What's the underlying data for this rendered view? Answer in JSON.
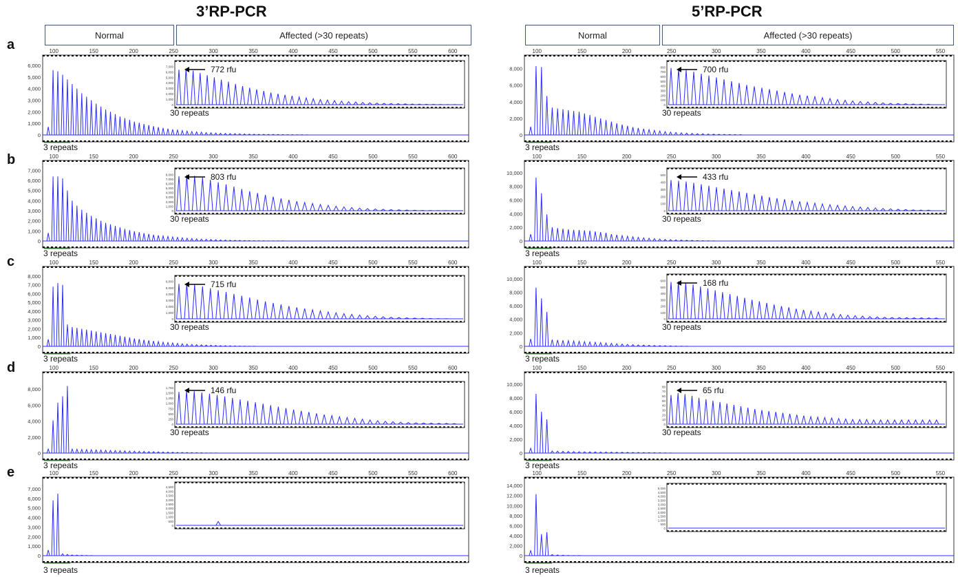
{
  "columns": [
    {
      "title": "3’RP-PCR",
      "normal_label": "Normal",
      "affected_label": "Affected (>30 repeats)"
    },
    {
      "title": "5’RP-PCR",
      "normal_label": "Normal",
      "affected_label": "Affected (>30 repeats)"
    }
  ],
  "row_labels": [
    "a",
    "b",
    "c",
    "d",
    "e"
  ],
  "colors": {
    "trace": "#2b2bff",
    "axis": "#333333",
    "box": "#3f5b78",
    "marker": "#2e8b2e"
  },
  "chart_data": [
    {
      "type": "line",
      "panel": "3'RP-PCR a",
      "xlim": [
        86,
        620
      ],
      "yticks": [
        0,
        1000,
        2000,
        3000,
        4000,
        5000,
        6000
      ],
      "ylim": [
        0,
        6300
      ],
      "x_ticks": [
        100,
        150,
        200,
        250,
        300,
        350,
        400,
        450,
        500,
        550,
        600
      ],
      "peak_start": 93,
      "peak_step": 6,
      "peaks": [
        700,
        5600,
        5500,
        5200,
        4800,
        4400,
        4000,
        3600,
        3300,
        3000,
        2700,
        2450,
        2200,
        2000,
        1800,
        1600,
        1450,
        1300,
        1150,
        1050,
        950,
        850,
        760,
        680,
        600,
        540,
        480,
        430,
        380,
        340,
        300,
        270,
        240,
        210,
        190,
        170,
        150,
        130,
        120,
        110,
        100,
        90,
        80,
        70,
        60,
        55,
        50,
        45,
        40,
        35,
        30,
        28,
        25,
        22,
        20
      ],
      "bottom_label": "3 repeats",
      "inset": {
        "peak_label": "772 rfu",
        "repeats_label": "30 repeats",
        "yticks": [
          0,
          1000,
          2000,
          3000,
          4000,
          5000,
          6000,
          7000
        ],
        "ylim": [
          0,
          7300
        ],
        "peaks": [
          6400,
          6600,
          6200,
          5800,
          5400,
          5000,
          4600,
          4200,
          3800,
          3400,
          3100,
          2800,
          2500,
          2200,
          2000,
          1800,
          1600,
          1400,
          1250,
          1100,
          950,
          850,
          750,
          650,
          560,
          480,
          410,
          350,
          300,
          250,
          210,
          180,
          150,
          120,
          100,
          80,
          60,
          50,
          40,
          30
        ]
      }
    },
    {
      "type": "line",
      "panel": "5'RP-PCR a",
      "xlim": [
        86,
        565
      ],
      "yticks": [
        0,
        2000,
        4000,
        6000,
        8000
      ],
      "ylim": [
        0,
        8800
      ],
      "x_ticks": [
        100,
        150,
        200,
        250,
        300,
        350,
        400,
        450,
        500,
        550
      ],
      "peak_start": 93,
      "peak_step": 6,
      "peaks": [
        1000,
        8300,
        8200,
        4700,
        3300,
        3200,
        3100,
        3000,
        2900,
        2800,
        2600,
        2400,
        2200,
        2000,
        1800,
        1600,
        1400,
        1250,
        1100,
        950,
        850,
        750,
        650,
        560,
        480,
        410,
        350,
        300,
        260,
        220,
        190,
        160,
        140,
        120,
        100,
        85,
        70,
        60,
        50,
        40
      ],
      "bottom_label": "3 repeats",
      "inset": {
        "peak_label": "700 rfu",
        "repeats_label": "30 repeats",
        "yticks": [
          0,
          100,
          200,
          300,
          400,
          500,
          600,
          700,
          800
        ],
        "ylim": [
          0,
          850
        ],
        "peaks": [
          780,
          760,
          740,
          700,
          660,
          620,
          580,
          540,
          500,
          460,
          420,
          390,
          360,
          330,
          300,
          270,
          240,
          210,
          190,
          170,
          150,
          130,
          110,
          95,
          80,
          70,
          60,
          50,
          40,
          30,
          25,
          20,
          15,
          12,
          10
        ]
      }
    },
    {
      "type": "line",
      "panel": "3'RP-PCR b",
      "xlim": [
        86,
        620
      ],
      "yticks": [
        0,
        1000,
        2000,
        3000,
        4000,
        5000,
        6000,
        7000
      ],
      "ylim": [
        0,
        7300
      ],
      "x_ticks": [
        100,
        150,
        200,
        250,
        300,
        350,
        400,
        450,
        500,
        550,
        600
      ],
      "peak_start": 93,
      "peak_step": 6,
      "peaks": [
        800,
        6400,
        6400,
        6200,
        5000,
        4000,
        3500,
        3100,
        2800,
        2500,
        2250,
        2000,
        1800,
        1650,
        1500,
        1350,
        1200,
        1080,
        970,
        870,
        780,
        700,
        630,
        560,
        500,
        450,
        400,
        360,
        320,
        280,
        250,
        220,
        190,
        170,
        150,
        130,
        110,
        95,
        80,
        70,
        60,
        50,
        40,
        35,
        30,
        25,
        22,
        20,
        18,
        15
      ],
      "bottom_label": "3 repeats",
      "inset": {
        "peak_label": "803 rfu",
        "repeats_label": "30 repeats",
        "yticks": [
          0,
          1000,
          2000,
          3000,
          4000,
          5000,
          6000,
          7000,
          8000
        ],
        "ylim": [
          0,
          8500
        ],
        "peaks": [
          7600,
          7900,
          7700,
          7300,
          6800,
          6300,
          5800,
          5300,
          4800,
          4300,
          3900,
          3500,
          3100,
          2700,
          2400,
          2100,
          1800,
          1600,
          1400,
          1200,
          1000,
          850,
          700,
          580,
          470,
          380,
          300,
          240,
          190,
          150,
          110,
          80,
          60,
          40,
          30
        ]
      }
    },
    {
      "type": "line",
      "panel": "5'RP-PCR b",
      "xlim": [
        86,
        565
      ],
      "yticks": [
        0,
        2000,
        4000,
        6000,
        8000,
        10000
      ],
      "ylim": [
        0,
        10800
      ],
      "x_ticks": [
        100,
        150,
        200,
        250,
        300,
        350,
        400,
        450,
        500,
        550
      ],
      "peak_start": 93,
      "peak_step": 6,
      "peaks": [
        1000,
        9300,
        7000,
        3900,
        2000,
        1900,
        1800,
        1700,
        1650,
        1600,
        1550,
        1500,
        1400,
        1300,
        1200,
        1000,
        900,
        800,
        700,
        620,
        540,
        460,
        400,
        340,
        290,
        240,
        200,
        170,
        140,
        110,
        90,
        70,
        55,
        40,
        30
      ],
      "bottom_label": "3 repeats",
      "inset": {
        "peak_label": "433 rfu",
        "repeats_label": "30 repeats",
        "yticks": [
          0,
          100,
          200,
          300,
          400,
          500
        ],
        "ylim": [
          0,
          540
        ],
        "peaks": [
          430,
          420,
          410,
          390,
          370,
          350,
          330,
          310,
          290,
          270,
          250,
          230,
          210,
          190,
          175,
          160,
          145,
          130,
          118,
          106,
          95,
          85,
          76,
          68,
          60,
          52,
          45,
          38,
          32,
          26,
          20,
          16,
          12,
          10,
          8
        ]
      }
    },
    {
      "type": "line",
      "panel": "3'RP-PCR c",
      "xlim": [
        86,
        620
      ],
      "yticks": [
        0,
        1000,
        2000,
        3000,
        4000,
        5000,
        6000,
        7000,
        8000
      ],
      "ylim": [
        0,
        8300
      ],
      "x_ticks": [
        100,
        150,
        200,
        250,
        300,
        350,
        400,
        450,
        500,
        550,
        600
      ],
      "peak_start": 93,
      "peak_step": 6,
      "peaks": [
        800,
        6800,
        7200,
        7000,
        2500,
        2200,
        2100,
        2000,
        1900,
        1800,
        1700,
        1600,
        1500,
        1400,
        1300,
        1200,
        1100,
        1000,
        900,
        820,
        740,
        670,
        600,
        540,
        480,
        430,
        380,
        340,
        300,
        260,
        230,
        200,
        170,
        150,
        130,
        110,
        90,
        75,
        60,
        50,
        40,
        30,
        25,
        20
      ],
      "bottom_label": "3 repeats",
      "inset": {
        "peak_label": "715 rfu",
        "repeats_label": "30 repeats",
        "yticks": [
          0,
          1000,
          2000,
          3000,
          4000,
          5000,
          6000
        ],
        "ylim": [
          0,
          6300
        ],
        "peaks": [
          5600,
          5700,
          5500,
          5200,
          4900,
          4600,
          4300,
          4000,
          3700,
          3400,
          3100,
          2800,
          2550,
          2300,
          2050,
          1850,
          1650,
          1450,
          1280,
          1120,
          970,
          840,
          720,
          610,
          510,
          420,
          340,
          270,
          210,
          160,
          120,
          90,
          60,
          40,
          25
        ]
      }
    },
    {
      "type": "line",
      "panel": "5'RP-PCR c",
      "xlim": [
        86,
        565
      ],
      "yticks": [
        0,
        2000,
        4000,
        6000,
        8000,
        10000
      ],
      "ylim": [
        0,
        10800
      ],
      "x_ticks": [
        100,
        150,
        200,
        250,
        300,
        350,
        400,
        450,
        500,
        550
      ],
      "peak_start": 93,
      "peak_step": 6,
      "peaks": [
        1100,
        8700,
        7100,
        5100,
        1000,
        950,
        900,
        850,
        800,
        750,
        700,
        650,
        600,
        550,
        500,
        450,
        400,
        350,
        300,
        260,
        220,
        190,
        160,
        130,
        110,
        90,
        70,
        55,
        40,
        30
      ],
      "bottom_label": "3 repeats",
      "inset": {
        "peak_label": "168 rfu",
        "repeats_label": "30 repeats",
        "yticks": [
          0,
          100,
          200,
          300,
          400,
          500,
          600
        ],
        "ylim": [
          0,
          640
        ],
        "peaks": [
          580,
          590,
          570,
          540,
          510,
          480,
          450,
          420,
          390,
          360,
          330,
          300,
          275,
          250,
          225,
          200,
          180,
          160,
          140,
          122,
          106,
          92,
          80,
          68,
          58,
          50,
          42,
          35,
          30,
          26,
          22,
          20,
          18,
          16,
          15,
          14,
          13
        ]
      }
    },
    {
      "type": "line",
      "panel": "3'RP-PCR d",
      "xlim": [
        86,
        620
      ],
      "yticks": [
        0,
        2000,
        4000,
        6000,
        8000
      ],
      "ylim": [
        0,
        9300
      ],
      "x_ticks": [
        100,
        150,
        200,
        250,
        300,
        350,
        400,
        450,
        500,
        550,
        600
      ],
      "peak_start": 93,
      "peak_step": 6,
      "peaks": [
        500,
        4100,
        6300,
        7100,
        8400,
        500,
        480,
        460,
        440,
        420,
        400,
        380,
        360,
        340,
        320,
        300,
        280,
        260,
        240,
        220,
        200,
        185,
        170,
        155,
        140,
        125,
        110,
        95,
        80,
        70,
        60,
        50,
        40,
        30,
        25,
        20
      ],
      "bottom_label": "3 repeats",
      "inset": {
        "peak_label": "146 rfu",
        "repeats_label": "30 repeats",
        "yticks": [
          0,
          250,
          500,
          750,
          1000,
          1250,
          1500,
          1750
        ],
        "ylim": [
          0,
          1850
        ],
        "peaks": [
          1550,
          1600,
          1580,
          1520,
          1460,
          1400,
          1330,
          1260,
          1190,
          1120,
          1050,
          980,
          910,
          840,
          770,
          700,
          640,
          580,
          520,
          460,
          410,
          360,
          320,
          280,
          240,
          200,
          170,
          140,
          115,
          95,
          80,
          65,
          55,
          45,
          40,
          35,
          30
        ]
      }
    },
    {
      "type": "line",
      "panel": "5'RP-PCR d",
      "xlim": [
        86,
        565
      ],
      "yticks": [
        0,
        2000,
        4000,
        6000,
        8000,
        10000
      ],
      "ylim": [
        0,
        10800
      ],
      "x_ticks": [
        100,
        150,
        200,
        250,
        300,
        350,
        400,
        450,
        500,
        550
      ],
      "peak_start": 93,
      "peak_step": 6,
      "peaks": [
        700,
        8600,
        6000,
        4900,
        300,
        280,
        260,
        240,
        220,
        200,
        190,
        180,
        170,
        160,
        150,
        140,
        130,
        120,
        110,
        100,
        90,
        80,
        70,
        60,
        50,
        40,
        30
      ],
      "bottom_label": "3 repeats",
      "inset": {
        "peak_label": "65 rfu",
        "repeats_label": "30 repeats",
        "yticks": [
          0,
          10,
          20,
          30,
          40,
          50,
          60,
          70,
          80
        ],
        "ylim": [
          0,
          82
        ],
        "peaks": [
          62,
          66,
          64,
          60,
          56,
          53,
          50,
          47,
          44,
          41,
          38,
          35,
          32,
          30,
          28,
          26,
          24,
          22,
          20,
          18,
          16,
          15,
          14,
          13,
          12,
          11,
          10,
          10,
          10,
          9,
          9,
          9,
          9,
          9,
          9,
          9,
          9,
          9,
          9
        ]
      }
    },
    {
      "type": "line",
      "panel": "3'RP-PCR e",
      "xlim": [
        86,
        620
      ],
      "yticks": [
        0,
        1000,
        2000,
        3000,
        4000,
        5000,
        6000,
        7000
      ],
      "ylim": [
        0,
        7500
      ],
      "x_ticks": [
        100,
        150,
        200,
        250,
        300,
        350,
        400,
        450,
        500,
        550,
        600
      ],
      "peak_start": 93,
      "peak_step": 6,
      "peaks": [
        600,
        5800,
        6500,
        200,
        120,
        80,
        60,
        40,
        30,
        20
      ],
      "bottom_label": "3 repeats",
      "inset": {
        "peak_label": "",
        "repeats_label": "",
        "yticks": [
          0,
          500,
          1000,
          1500,
          2000,
          2500,
          3000,
          3500,
          4000,
          4500
        ],
        "ylim": [
          0,
          4600
        ],
        "peaks": [
          0,
          0,
          0,
          0,
          0,
          450,
          0,
          0,
          0,
          0,
          0,
          0,
          0,
          0,
          0,
          0,
          0,
          0,
          0,
          0,
          0,
          0,
          0,
          0,
          0,
          0,
          0,
          0,
          0,
          0,
          0,
          0,
          0,
          0,
          0
        ]
      }
    },
    {
      "type": "line",
      "panel": "5'RP-PCR e",
      "xlim": [
        86,
        565
      ],
      "yticks": [
        0,
        2000,
        4000,
        6000,
        8000,
        10000,
        12000,
        14000
      ],
      "ylim": [
        0,
        14300
      ],
      "x_ticks": [
        100,
        150,
        200,
        250,
        300,
        350,
        400,
        450,
        500,
        550
      ],
      "peak_start": 93,
      "peak_step": 6,
      "peaks": [
        1000,
        12300,
        4300,
        4700,
        200,
        150,
        100,
        60,
        40,
        30
      ],
      "bottom_label": "3 repeats",
      "inset": {
        "peak_label": "",
        "repeats_label": "",
        "yticks": [
          0,
          500,
          1000,
          1500,
          2000,
          2500,
          3000,
          3500,
          4000,
          4500,
          5000
        ],
        "ylim": [
          0,
          5100
        ],
        "peaks": [
          0,
          0,
          0,
          0,
          0,
          0,
          0,
          0,
          0,
          0,
          0,
          0,
          0,
          0,
          0,
          0,
          0,
          0,
          0,
          0,
          0,
          0,
          0,
          0,
          0,
          0,
          0,
          0,
          0,
          0
        ]
      }
    }
  ]
}
